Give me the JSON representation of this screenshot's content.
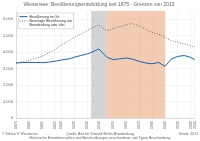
{
  "chart_data": {
    "type": "line",
    "title": "Wiesensee: Bevölkerungsentwicklung seit 1875 - Grenzen von 2013",
    "x": [
      1875,
      1880,
      1885,
      1890,
      1895,
      1900,
      1905,
      1910,
      1916,
      1920,
      1925,
      1930,
      1933,
      1939,
      1945,
      1950,
      1955,
      1960,
      1964,
      1970,
      1975,
      1980,
      1985,
      1990,
      1995,
      2000,
      2005,
      2010,
      2013
    ],
    "series": [
      {
        "name": "Bevölkerung im Ort",
        "color": "#1565c0",
        "line_style": "solid",
        "values": [
          3350,
          3370,
          3380,
          3380,
          3370,
          3400,
          3450,
          3530,
          3600,
          3700,
          3800,
          3900,
          3980,
          4200,
          3700,
          3550,
          3600,
          3650,
          3600,
          3450,
          3350,
          3300,
          3380,
          3150,
          3600,
          3750,
          3800,
          3680,
          3550
        ]
      },
      {
        "name": "Bereinigte Bevölkerung von\nBrandenburg oder ähn.",
        "color": "#555555",
        "line_style": "dotted",
        "values": [
          3350,
          3420,
          3500,
          3620,
          3750,
          3950,
          4150,
          4450,
          4700,
          4900,
          5100,
          5300,
          5450,
          5650,
          5300,
          5450,
          5550,
          5650,
          5750,
          5600,
          5400,
          5200,
          5100,
          4900,
          4700,
          4600,
          4500,
          4400,
          4300
        ]
      }
    ],
    "xlim": [
      1875,
      2013
    ],
    "xticks": [
      1875,
      1885,
      1895,
      1905,
      1910,
      1920,
      1930,
      1939,
      1950,
      1960,
      1970,
      1980,
      1990,
      2000,
      2010,
      2013
    ],
    "ylim": [
      0,
      6500
    ],
    "yticks": [
      0,
      {
        "value": 1000,
        "label": "1.000"
      },
      {
        "value": 2000,
        "label": "2.000"
      },
      {
        "value": 3000,
        "label": "3.000"
      },
      {
        "value": 4000,
        "label": "4.000"
      },
      {
        "value": 5000,
        "label": "5.000"
      },
      {
        "value": 6000,
        "label": "6.000"
      }
    ],
    "grid": true,
    "legend": "upper left",
    "spans": [
      {
        "range": [
          1933,
          1945
        ],
        "color": "#b0b0b0"
      },
      {
        "range": [
          1945,
          1990
        ],
        "color": "#e8a070"
      }
    ],
    "footer": {
      "left": "© Stefan V. Wiesensee",
      "center": "Quelle: Amt für Statistik Berlin-Brandenburg",
      "right": "Stand: 2013",
      "bottom": "Historische Einwohnerzahlen und Beschreibungen verschiedener und Typen Beschreibung"
    }
  }
}
